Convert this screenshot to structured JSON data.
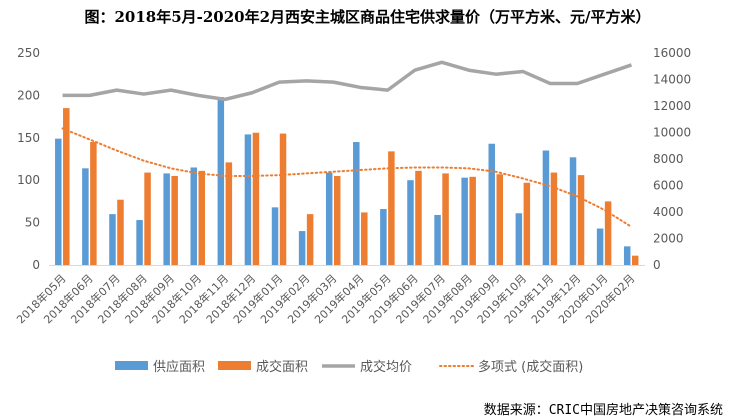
{
  "chart_data": {
    "type": "bar",
    "title": "图：2018年5月-2020年2月西安主城区商品住宅供求量价（万平方米、元/平方米）",
    "source": "数据来源：CRIC中国房地产决策咨询系统",
    "categories": [
      "2018年05月",
      "2018年06月",
      "2018年07月",
      "2018年08月",
      "2018年09月",
      "2018年10月",
      "2018年11月",
      "2018年12月",
      "2019年01月",
      "2019年02月",
      "2019年03月",
      "2019年04月",
      "2019年05月",
      "2019年06月",
      "2019年07月",
      "2019年08月",
      "2019年09月",
      "2019年10月",
      "2019年11月",
      "2019年12月",
      "2020年01月",
      "2020年02月"
    ],
    "series": [
      {
        "name": "供应面积",
        "type": "bar",
        "axis": "left",
        "color": "#5B9BD5",
        "values": [
          149,
          114,
          60,
          53,
          108,
          115,
          198,
          154,
          68,
          40,
          109,
          145,
          66,
          100,
          59,
          103,
          143,
          61,
          135,
          127,
          43,
          22
        ]
      },
      {
        "name": "成交面积",
        "type": "bar",
        "axis": "left",
        "color": "#ED7D31",
        "values": [
          185,
          145,
          77,
          109,
          105,
          111,
          121,
          156,
          155,
          60,
          105,
          62,
          134,
          111,
          108,
          104,
          107,
          97,
          109,
          106,
          75,
          11
        ]
      },
      {
        "name": "成交均价",
        "type": "line",
        "axis": "right",
        "color": "#A5A5A5",
        "values": [
          12800,
          12800,
          13200,
          12900,
          13200,
          12800,
          12500,
          13000,
          13800,
          13900,
          13800,
          13400,
          13200,
          14700,
          15300,
          14700,
          14400,
          14600,
          13700,
          13700,
          14400,
          15100
        ]
      },
      {
        "name": "多项式 (成交面积)",
        "type": "trendline",
        "axis": "left",
        "color": "#ED7D31",
        "values": [
          161,
          148,
          135,
          123,
          114,
          108,
          105,
          105,
          106,
          108,
          110,
          112,
          114,
          115,
          115,
          114,
          110,
          102,
          93,
          81,
          65,
          45
        ]
      }
    ],
    "y_left": {
      "min": 0,
      "max": 250,
      "ticks": [
        0,
        50,
        100,
        150,
        200,
        250
      ]
    },
    "y_right": {
      "min": 0,
      "max": 16000,
      "ticks": [
        0,
        2000,
        4000,
        6000,
        8000,
        10000,
        12000,
        14000,
        16000
      ]
    },
    "grid": false,
    "legend_position": "bottom"
  }
}
